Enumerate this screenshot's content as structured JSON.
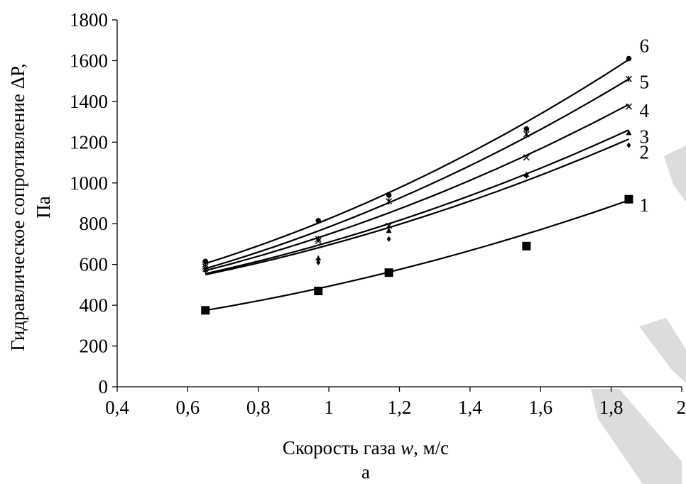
{
  "chart_data": {
    "type": "scatter",
    "title": "",
    "xlabel_text": "Скорость газа ",
    "xlabel_var": "w",
    "xlabel_unit": ", м/с",
    "ylabel_line1": "Гидравлическое сопротивление ΔP,",
    "ylabel_line2": "Па",
    "panel_label": "а",
    "xlim": [
      0.4,
      2.0
    ],
    "ylim": [
      0,
      1800
    ],
    "x_ticks": [
      0.4,
      0.6,
      0.8,
      1.0,
      1.2,
      1.4,
      1.6,
      1.8,
      2.0
    ],
    "x_tick_labels": [
      "0,4",
      "0,6",
      "0,8",
      "1",
      "1,2",
      "1,4",
      "1,6",
      "1,8",
      "2"
    ],
    "y_ticks": [
      0,
      200,
      400,
      600,
      800,
      1000,
      1200,
      1400,
      1600,
      1800
    ],
    "y_tick_labels": [
      "0",
      "200",
      "400",
      "600",
      "800",
      "1000",
      "1200",
      "1400",
      "1600",
      "1800"
    ],
    "grid": false,
    "x": [
      0.65,
      0.97,
      1.17,
      1.56,
      1.85
    ],
    "series": [
      {
        "label": "1",
        "marker": "square",
        "values": [
          375,
          470,
          560,
          690,
          920
        ],
        "trend_x": [
          0.65,
          1.85
        ],
        "trend_y": [
          375,
          915
        ]
      },
      {
        "label": "2",
        "marker": "diamond",
        "values": [
          570,
          610,
          725,
          1035,
          1185
        ],
        "trend_x": [
          0.65,
          1.85
        ],
        "trend_y": [
          550,
          1215
        ]
      },
      {
        "label": "3",
        "marker": "triangle",
        "values": [
          575,
          630,
          765,
          1040,
          1245
        ],
        "trend_x": [
          0.65,
          1.85
        ],
        "trend_y": [
          555,
          1260
        ]
      },
      {
        "label": "4",
        "marker": "x",
        "values": [
          590,
          715,
          790,
          1125,
          1375
        ],
        "trend_x": [
          0.65,
          1.85
        ],
        "trend_y": [
          570,
          1385
        ]
      },
      {
        "label": "5",
        "marker": "star",
        "values": [
          600,
          725,
          910,
          1240,
          1510
        ],
        "trend_x": [
          0.65,
          1.85
        ],
        "trend_y": [
          580,
          1510
        ]
      },
      {
        "label": "6",
        "marker": "circle",
        "values": [
          615,
          815,
          940,
          1265,
          1610
        ],
        "trend_x": [
          0.65,
          1.85
        ],
        "trend_y": [
          605,
          1605
        ]
      }
    ]
  }
}
